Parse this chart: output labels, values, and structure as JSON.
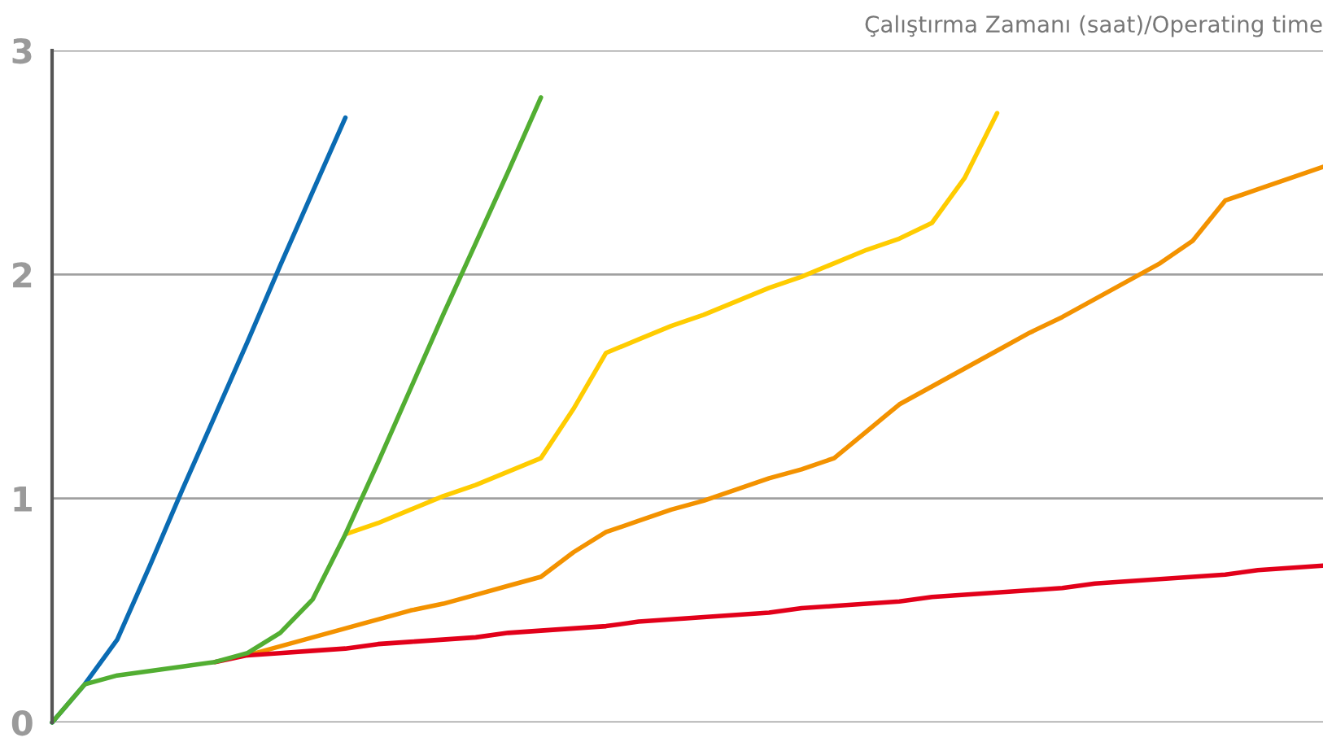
{
  "chart_data": {
    "type": "line",
    "xlabel": "Çalıştırma Zamanı (saat)/Operating time",
    "categories": [
      null,
      null,
      null,
      null,
      null,
      null,
      null,
      null,
      null,
      null,
      null,
      null,
      null,
      null,
      null,
      null,
      null,
      null,
      null,
      null,
      null,
      null,
      null,
      null,
      null,
      null,
      null,
      null,
      null,
      null,
      null,
      null,
      null,
      null,
      null,
      null,
      null,
      null,
      null,
      null
    ],
    "series": [
      {
        "color": "#0a6bb3",
        "values": [
          0,
          0.17,
          0.37,
          0.7,
          1.04,
          1.37,
          1.7,
          2.04,
          2.37,
          2.7,
          null,
          null,
          null,
          null,
          null,
          null,
          null,
          null,
          null,
          null,
          null,
          null,
          null,
          null,
          null,
          null,
          null,
          null,
          null,
          null,
          null,
          null,
          null,
          null,
          null,
          null,
          null,
          null,
          null,
          null
        ]
      },
      {
        "color": "#ffcc00",
        "values": [
          null,
          null,
          null,
          null,
          null,
          null,
          null,
          null,
          null,
          0.84,
          0.89,
          0.95,
          1.01,
          1.06,
          1.12,
          1.18,
          1.4,
          1.65,
          1.71,
          1.77,
          1.82,
          1.88,
          1.94,
          1.99,
          2.05,
          2.11,
          2.16,
          2.23,
          2.43,
          2.72,
          null,
          null,
          null,
          null,
          null,
          null,
          null,
          null,
          null,
          null
        ]
      },
      {
        "color": "#f39200",
        "values": [
          null,
          null,
          null,
          null,
          null,
          null,
          0.3,
          0.34,
          0.38,
          0.42,
          0.46,
          0.5,
          0.53,
          0.57,
          0.61,
          0.65,
          0.76,
          0.85,
          0.9,
          0.95,
          0.99,
          1.04,
          1.09,
          1.13,
          1.18,
          1.3,
          1.42,
          1.5,
          1.58,
          1.66,
          1.74,
          1.81,
          1.89,
          1.97,
          2.05,
          2.15,
          2.33,
          2.38,
          2.43,
          2.48
        ]
      },
      {
        "color": "#e2001a",
        "values": [
          null,
          null,
          null,
          null,
          null,
          0.27,
          0.3,
          0.31,
          0.32,
          0.33,
          0.35,
          0.36,
          0.37,
          0.38,
          0.4,
          0.41,
          0.42,
          0.43,
          0.45,
          0.46,
          0.47,
          0.48,
          0.49,
          0.51,
          0.52,
          0.53,
          0.54,
          0.56,
          0.57,
          0.58,
          0.59,
          0.6,
          0.62,
          0.63,
          0.64,
          0.65,
          0.66,
          0.68,
          0.69,
          0.7
        ]
      },
      {
        "color": "#52ae32",
        "values": [
          0,
          0.17,
          0.21,
          0.23,
          0.25,
          0.27,
          0.31,
          0.4,
          0.55,
          0.84,
          1.16,
          1.49,
          1.82,
          2.14,
          2.46,
          2.79,
          null,
          null,
          null,
          null,
          null,
          null,
          null,
          null,
          null,
          null,
          null,
          null,
          null,
          null,
          null,
          null,
          null,
          null,
          null,
          null,
          null,
          null,
          null,
          null
        ]
      }
    ],
    "ylim": [
      0,
      3
    ],
    "yticks": [
      0,
      1,
      2,
      3
    ],
    "grid": "y",
    "tick_labels": "y"
  }
}
